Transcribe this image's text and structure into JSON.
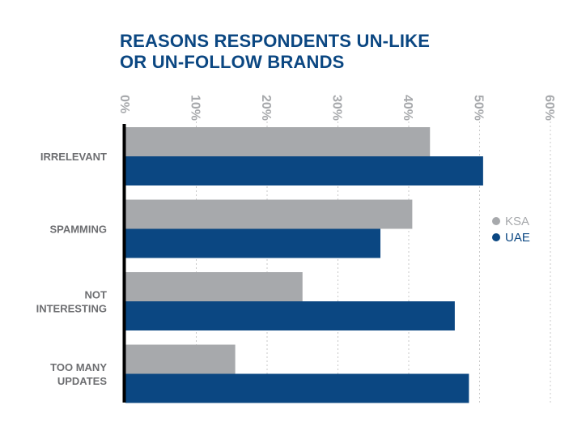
{
  "chart_data": {
    "type": "bar",
    "orientation": "horizontal",
    "title_lines": [
      "REASONS RESPONDENTS UN-LIKE",
      "OR UN-FOLLOW BRANDS"
    ],
    "categories": [
      [
        "IRRELEVANT"
      ],
      [
        "SPAMMING"
      ],
      [
        "NOT",
        "INTERESTING"
      ],
      [
        "TOO MANY",
        "UPDATES"
      ]
    ],
    "series": [
      {
        "name": "KSA",
        "color": "#a7a9ac",
        "values": [
          43,
          40.5,
          25,
          15.5
        ]
      },
      {
        "name": "UAE",
        "color": "#0b4782",
        "values": [
          50.5,
          36,
          46.5,
          48.5
        ]
      }
    ],
    "x_ticks": [
      "0%",
      "10%",
      "20%",
      "30%",
      "40%",
      "50%",
      "60%"
    ],
    "xlim": [
      0,
      60
    ],
    "grid": "vertical dotted",
    "legend_position": "right"
  }
}
